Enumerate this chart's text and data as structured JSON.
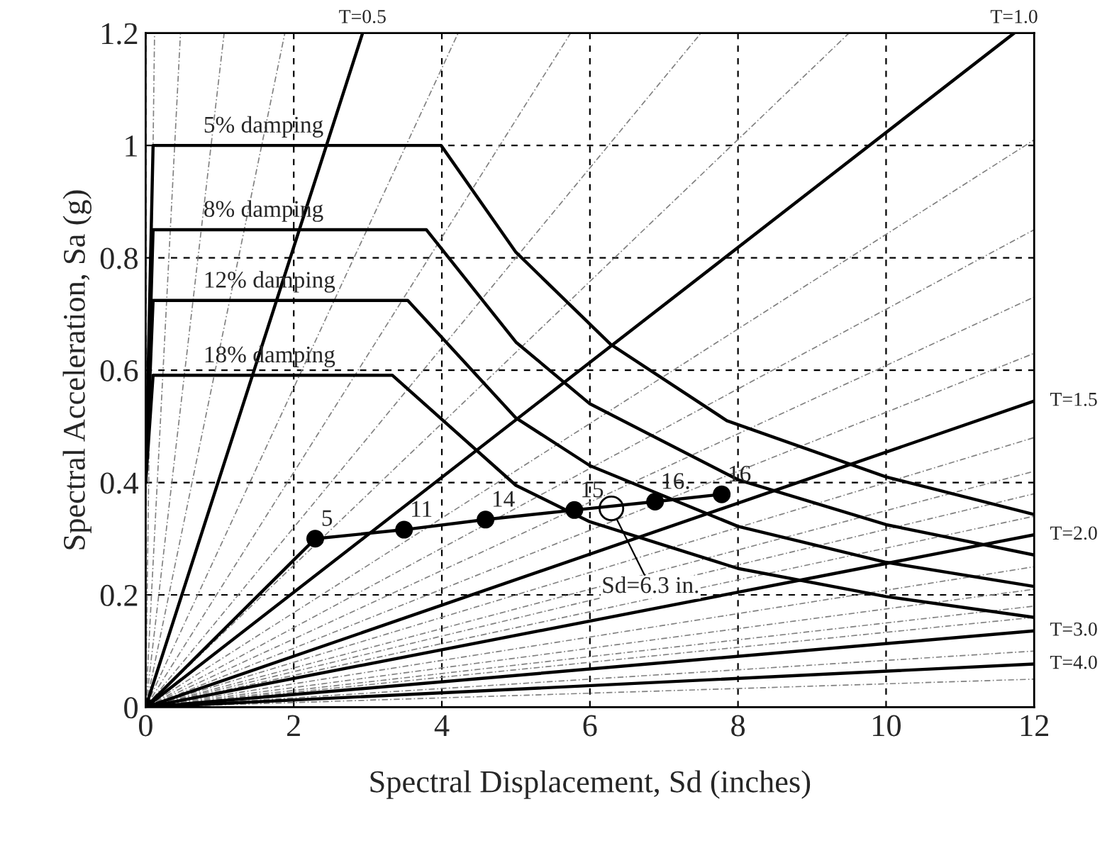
{
  "chart_data": {
    "type": "line",
    "xlabel": "Spectral Displacement, Sd (inches)",
    "ylabel": "Spectral Acceleration, Sa (g)",
    "xlim": [
      0,
      12
    ],
    "ylim": [
      0,
      1.2
    ],
    "xticks": [
      0,
      2,
      4,
      6,
      8,
      10,
      12
    ],
    "yticks": [
      0,
      0.2,
      0.4,
      0.6,
      0.8,
      1,
      1.2
    ],
    "grid": true,
    "series": [
      {
        "color": "#808080",
        "line_style": "dashed",
        "x": [
          0,
          0.12
        ],
        "values": [
          0,
          1.2
        ]
      },
      {
        "color": "#808080",
        "line_style": "dashed",
        "x": [
          0,
          0.47
        ],
        "values": [
          0,
          1.2
        ]
      },
      {
        "color": "#808080",
        "line_style": "dashed",
        "x": [
          0,
          1.06
        ],
        "values": [
          0,
          1.2
        ]
      },
      {
        "color": "#808080",
        "line_style": "dashed",
        "x": [
          0,
          1.88
        ],
        "values": [
          0,
          1.2
        ]
      },
      {
        "color": "#808080",
        "line_style": "dashed",
        "x": [
          0,
          4.22
        ],
        "values": [
          0,
          1.2
        ]
      },
      {
        "color": "#808080",
        "line_style": "dashed",
        "x": [
          0,
          5.74
        ],
        "values": [
          0,
          1.2
        ]
      },
      {
        "color": "#808080",
        "line_style": "dashed",
        "x": [
          0,
          7.5
        ],
        "values": [
          0,
          1.2
        ]
      },
      {
        "color": "#808080",
        "line_style": "dashed",
        "x": [
          0,
          9.5
        ],
        "values": [
          0,
          1.2
        ]
      },
      {
        "color": "#808080",
        "line_style": "dashed",
        "x": [
          0,
          12
        ],
        "values": [
          0,
          1.01
        ]
      },
      {
        "color": "#808080",
        "line_style": "dashed",
        "x": [
          0,
          12
        ],
        "values": [
          0,
          0.85
        ]
      },
      {
        "color": "#808080",
        "line_style": "dashed",
        "x": [
          0,
          12
        ],
        "values": [
          0,
          0.73
        ]
      },
      {
        "color": "#808080",
        "line_style": "dashed",
        "x": [
          0,
          12
        ],
        "values": [
          0,
          0.63
        ]
      },
      {
        "color": "#808080",
        "line_style": "dashed",
        "x": [
          0,
          12
        ],
        "values": [
          0,
          0.48
        ]
      },
      {
        "color": "#808080",
        "line_style": "dashed",
        "x": [
          0,
          12
        ],
        "values": [
          0,
          0.42
        ]
      },
      {
        "color": "#808080",
        "line_style": "dashed",
        "x": [
          0,
          12
        ],
        "values": [
          0,
          0.38
        ]
      },
      {
        "color": "#808080",
        "line_style": "dashed",
        "x": [
          0,
          12
        ],
        "values": [
          0,
          0.34
        ]
      },
      {
        "color": "#808080",
        "line_style": "dashed",
        "x": [
          0,
          12
        ],
        "values": [
          0,
          0.25
        ]
      },
      {
        "color": "#808080",
        "line_style": "dashed",
        "x": [
          0,
          12
        ],
        "values": [
          0,
          0.21
        ]
      },
      {
        "color": "#808080",
        "line_style": "dashed",
        "x": [
          0,
          12
        ],
        "values": [
          0,
          0.18
        ]
      },
      {
        "color": "#808080",
        "line_style": "dashed",
        "x": [
          0,
          12
        ],
        "values": [
          0,
          0.16
        ]
      },
      {
        "color": "#808080",
        "line_style": "dashed",
        "x": [
          0,
          12
        ],
        "values": [
          0,
          0.1
        ]
      },
      {
        "color": "#808080",
        "line_style": "dashed",
        "x": [
          0,
          12
        ],
        "values": [
          0,
          0.05
        ]
      },
      {
        "color": "#000000",
        "line_style": "solid",
        "x": [
          0,
          2.93
        ],
        "values": [
          0,
          1.2
        ]
      },
      {
        "color": "#000000",
        "line_style": "solid",
        "x": [
          0,
          11.73
        ],
        "values": [
          0,
          1.2
        ]
      },
      {
        "color": "#000000",
        "line_style": "solid",
        "x": [
          0,
          12
        ],
        "values": [
          0,
          0.545
        ]
      },
      {
        "color": "#000000",
        "line_style": "solid",
        "x": [
          0,
          12
        ],
        "values": [
          0,
          0.307
        ]
      },
      {
        "color": "#000000",
        "line_style": "solid",
        "x": [
          0,
          12
        ],
        "values": [
          0,
          0.136
        ]
      },
      {
        "color": "#000000",
        "line_style": "solid",
        "x": [
          0,
          12
        ],
        "values": [
          0,
          0.077
        ]
      },
      {
        "color": "#000000",
        "line_style": "solid",
        "x": [
          0,
          0.1,
          3.99,
          5,
          6.28,
          7.85,
          10,
          12
        ],
        "values": [
          0.4,
          1.0,
          1.0,
          0.81,
          0.646,
          0.51,
          0.41,
          0.343
        ]
      },
      {
        "color": "#000000",
        "line_style": "solid",
        "x": [
          0,
          0.1,
          3.79,
          5,
          6,
          8,
          10,
          12
        ],
        "values": [
          0.4,
          0.85,
          0.85,
          0.65,
          0.54,
          0.405,
          0.325,
          0.271
        ]
      },
      {
        "color": "#000000",
        "line_style": "solid",
        "x": [
          0,
          0.1,
          3.54,
          5,
          6,
          8,
          10,
          12
        ],
        "values": [
          0.4,
          0.724,
          0.724,
          0.515,
          0.43,
          0.322,
          0.258,
          0.215
        ]
      },
      {
        "color": "#000000",
        "line_style": "solid",
        "x": [
          0,
          0.1,
          3.33,
          5,
          6,
          8,
          10,
          12
        ],
        "values": [
          0.4,
          0.591,
          0.591,
          0.395,
          0.33,
          0.247,
          0.197,
          0.16
        ]
      },
      {
        "color": "#000000",
        "line_style": "solid",
        "marker": "circle",
        "x": [
          0,
          2.29,
          3.49,
          4.59,
          5.79,
          6.88,
          7.78
        ],
        "values": [
          0,
          0.3,
          0.316,
          0.334,
          0.351,
          0.366,
          0.379
        ]
      }
    ],
    "annotations": [
      {
        "text": "T=0.5",
        "x": 2.93,
        "y": 1.2
      },
      {
        "text": "T=1.0",
        "x": 11.73,
        "y": 1.2
      },
      {
        "text": "T=1.5",
        "x": 12,
        "y": 0.545
      },
      {
        "text": "T=2.0",
        "x": 12,
        "y": 0.307
      },
      {
        "text": "T=3.0",
        "x": 12,
        "y": 0.136
      },
      {
        "text": "T=4.0",
        "x": 12,
        "y": 0.077
      },
      {
        "text": "5% damping",
        "x": 0.7,
        "y": 1.0
      },
      {
        "text": "8% damping",
        "x": 0.7,
        "y": 0.85
      },
      {
        "text": "12% damping",
        "x": 0.7,
        "y": 0.724
      },
      {
        "text": "18% damping",
        "x": 0.7,
        "y": 0.591
      },
      {
        "text": "5",
        "x": 2.29,
        "y": 0.3
      },
      {
        "text": "11",
        "x": 3.49,
        "y": 0.316
      },
      {
        "text": "14",
        "x": 4.59,
        "y": 0.334
      },
      {
        "text": "15",
        "x": 5.79,
        "y": 0.351
      },
      {
        "text": "16.",
        "x": 6.88,
        "y": 0.366
      },
      {
        "text": "16",
        "x": 7.78,
        "y": 0.379
      },
      {
        "text": "Sd=6.3 in.",
        "x": 6.29,
        "y": 0.354
      }
    ]
  }
}
